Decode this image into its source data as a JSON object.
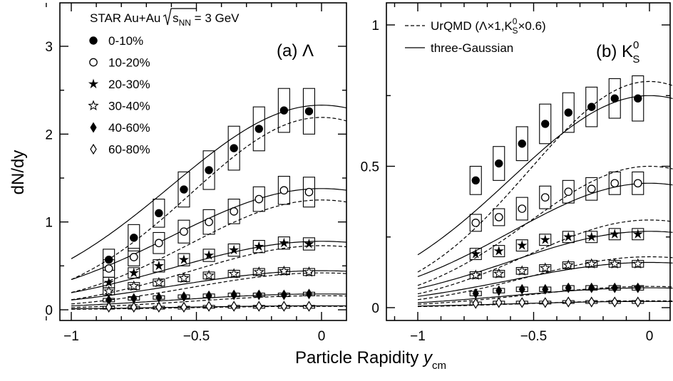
{
  "ylabel": "dN/dy",
  "xlabel_main": "Particle Rapidity ",
  "xlabel_var": "y",
  "xlabel_sub": "cm",
  "panel_a": {
    "label": "(a) Λ",
    "title_prefix": "STAR Au+Au ",
    "title_sqrt_s": "s",
    "title_sqrt_sub": "NN",
    "title_suffix": " = 3 GeV",
    "centralities": [
      "0-10%",
      "10-20%",
      "20-30%",
      "30-40%",
      "40-60%",
      "60-80%"
    ],
    "xticks": [
      "−1",
      "−0.5",
      "0"
    ],
    "yticks": [
      "0",
      "1",
      "2",
      "3"
    ]
  },
  "panel_b": {
    "label_prefix": "(b) K",
    "label_sup": "0",
    "label_sub": "S",
    "legend_urqmd": "UrQMD (Λ×1,K",
    "legend_urqmd_sup": "0",
    "legend_urqmd_sub": "S",
    "legend_urqmd_end": "×0.6)",
    "legend_fit": "three-Gaussian",
    "xticks": [
      "−1",
      "−0.5",
      "0"
    ],
    "yticks": [
      "0",
      "0.5",
      "1"
    ]
  },
  "chart_data": [
    {
      "type": "scatter",
      "title": "(a) Λ",
      "xlabel": "Particle Rapidity y_cm",
      "ylabel": "dN/dy",
      "xlim": [
        -1.1,
        0.05
      ],
      "ylim": [
        -0.05,
        3.5
      ],
      "x": [
        -0.85,
        -0.75,
        -0.65,
        -0.55,
        -0.45,
        -0.35,
        -0.25,
        -0.15,
        -0.05
      ],
      "series": [
        {
          "name": "0-10%",
          "marker": "filled-circle",
          "values": [
            0.57,
            0.82,
            1.1,
            1.37,
            1.59,
            1.84,
            2.06,
            2.27,
            2.26
          ],
          "sys": [
            0.12,
            0.15,
            0.16,
            0.2,
            0.22,
            0.25,
            0.25,
            0.25,
            0.26
          ],
          "fit_amp": 2.33,
          "urqmd_amp": 2.19
        },
        {
          "name": "10-20%",
          "marker": "open-circle",
          "values": [
            0.47,
            0.6,
            0.76,
            0.89,
            1.0,
            1.12,
            1.26,
            1.36,
            1.34
          ],
          "sys": [
            0.1,
            0.1,
            0.12,
            0.13,
            0.14,
            0.14,
            0.14,
            0.16,
            0.17
          ],
          "fit_amp": 1.38,
          "urqmd_amp": 1.25
        },
        {
          "name": "20-30%",
          "marker": "filled-star",
          "values": [
            0.31,
            0.42,
            0.5,
            0.57,
            0.62,
            0.68,
            0.72,
            0.76,
            0.75
          ],
          "sys": [
            0.06,
            0.06,
            0.07,
            0.07,
            0.07,
            0.07,
            0.07,
            0.07,
            0.07
          ],
          "fit_amp": 0.78,
          "urqmd_amp": 0.73
        },
        {
          "name": "30-40%",
          "marker": "open-star",
          "values": [
            0.21,
            0.27,
            0.31,
            0.36,
            0.39,
            0.41,
            0.43,
            0.44,
            0.43
          ],
          "sys": [
            0.04,
            0.04,
            0.04,
            0.04,
            0.04,
            0.04,
            0.04,
            0.04,
            0.04
          ],
          "fit_amp": 0.445,
          "urqmd_amp": 0.42
        },
        {
          "name": "40-60%",
          "marker": "filled-diamond",
          "values": [
            0.11,
            0.13,
            0.14,
            0.15,
            0.16,
            0.17,
            0.17,
            0.17,
            0.18
          ],
          "sys": [
            0.02,
            0.02,
            0.02,
            0.02,
            0.02,
            0.02,
            0.02,
            0.02,
            0.02
          ],
          "fit_amp": 0.18,
          "urqmd_amp": 0.16
        },
        {
          "name": "60-80%",
          "marker": "open-diamond",
          "values": [
            0.03,
            0.03,
            0.03,
            0.03,
            0.04,
            0.04,
            0.04,
            0.04,
            0.04
          ],
          "sys": [
            0.01,
            0.01,
            0.01,
            0.01,
            0.01,
            0.01,
            0.01,
            0.01,
            0.01
          ],
          "fit_amp": 0.045,
          "urqmd_amp": 0.04
        }
      ]
    },
    {
      "type": "scatter",
      "title": "(b) K0S",
      "xlabel": "Particle Rapidity y_cm",
      "ylabel": "dN/dy",
      "xlim": [
        -1.1,
        0.05
      ],
      "ylim": [
        -0.02,
        1.05
      ],
      "x": [
        -0.75,
        -0.65,
        -0.55,
        -0.45,
        -0.35,
        -0.25,
        -0.15,
        -0.05
      ],
      "series": [
        {
          "name": "0-10%",
          "marker": "filled-circle",
          "values": [
            0.45,
            0.51,
            0.58,
            0.65,
            0.69,
            0.71,
            0.74,
            0.74
          ],
          "sys": [
            0.05,
            0.06,
            0.06,
            0.07,
            0.07,
            0.07,
            0.07,
            0.08
          ],
          "fit_amp": 0.75,
          "urqmd_amp": 0.8
        },
        {
          "name": "10-20%",
          "marker": "open-circle",
          "values": [
            0.3,
            0.32,
            0.35,
            0.39,
            0.41,
            0.42,
            0.44,
            0.44
          ],
          "sys": [
            0.03,
            0.03,
            0.04,
            0.04,
            0.04,
            0.04,
            0.04,
            0.04
          ],
          "fit_amp": 0.44,
          "urqmd_amp": 0.5
        },
        {
          "name": "20-30%",
          "marker": "filled-star",
          "values": [
            0.19,
            0.2,
            0.22,
            0.24,
            0.25,
            0.25,
            0.26,
            0.26
          ],
          "sys": [
            0.02,
            0.02,
            0.02,
            0.02,
            0.02,
            0.02,
            0.02,
            0.02
          ],
          "fit_amp": 0.27,
          "urqmd_amp": 0.31
        },
        {
          "name": "30-40%",
          "marker": "open-star",
          "values": [
            0.115,
            0.12,
            0.13,
            0.14,
            0.15,
            0.155,
            0.155,
            0.155
          ],
          "sys": [
            0.012,
            0.012,
            0.012,
            0.012,
            0.012,
            0.012,
            0.012,
            0.012
          ],
          "fit_amp": 0.16,
          "urqmd_amp": 0.18
        },
        {
          "name": "40-60%",
          "marker": "filled-diamond",
          "values": [
            0.05,
            0.06,
            0.065,
            0.065,
            0.07,
            0.07,
            0.07,
            0.07
          ],
          "sys": [
            0.008,
            0.008,
            0.008,
            0.008,
            0.008,
            0.008,
            0.008,
            0.008
          ],
          "fit_amp": 0.07,
          "urqmd_amp": 0.075
        },
        {
          "name": "60-80%",
          "marker": "open-diamond",
          "values": [
            0.015,
            0.018,
            0.018,
            0.018,
            0.02,
            0.02,
            0.02,
            0.02
          ],
          "sys": [
            0.005,
            0.005,
            0.005,
            0.005,
            0.005,
            0.005,
            0.005,
            0.005
          ],
          "fit_amp": 0.022,
          "urqmd_amp": 0.024
        }
      ]
    }
  ]
}
